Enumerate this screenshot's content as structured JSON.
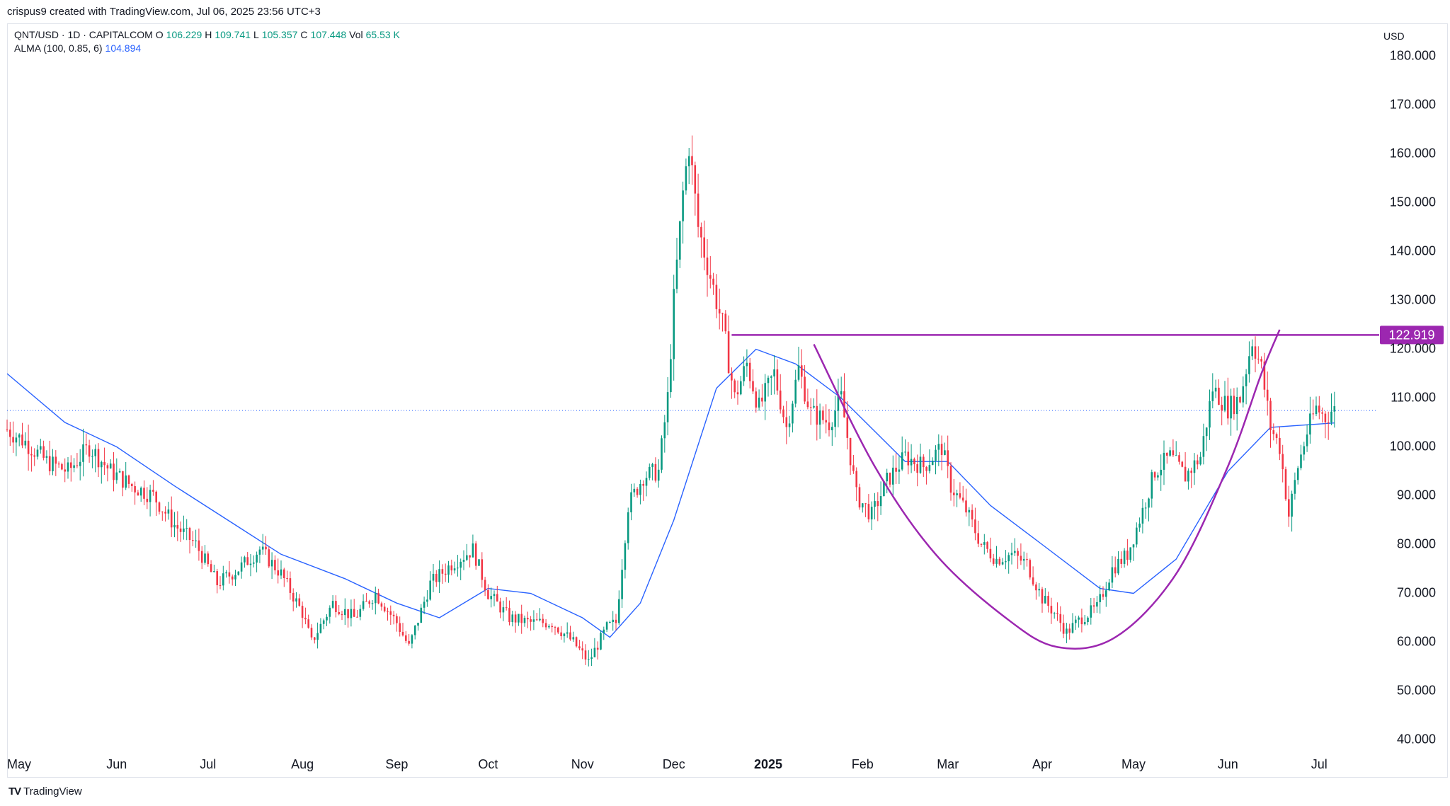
{
  "header": {
    "credit": "crispus9 created with TradingView.com, Jul 06, 2025 23:56 UTC+3"
  },
  "legend": {
    "symbol": "QNT/USD · 1D · CAPITALCOM",
    "o_label": "O",
    "o_value": "106.229",
    "h_label": "H",
    "h_value": "109.741",
    "l_label": "L",
    "l_value": "105.357",
    "c_label": "C",
    "c_value": "107.448",
    "vol_label": "Vol",
    "vol_value": "65.53 K",
    "alma_label": "ALMA (100, 0.85, 6)",
    "alma_value": "104.894"
  },
  "axis": {
    "currency": "USD"
  },
  "footer": {
    "brand": "TradingView"
  },
  "colors": {
    "up": "#089981",
    "down": "#f23645",
    "alma": "#2962ff",
    "pattern": "#9c27b0",
    "price_line": "#2962ff"
  },
  "chart_data": {
    "type": "candlestick",
    "title": "QNT/USD · 1D · CAPITALCOM",
    "ylim": [
      35,
      185
    ],
    "y_ticks": [
      "40.000",
      "50.000",
      "60.000",
      "70.000",
      "80.000",
      "90.000",
      "100.000",
      "110.000",
      "120.000",
      "130.000",
      "140.000",
      "150.000",
      "160.000",
      "170.000",
      "180.000"
    ],
    "x_ticks": [
      {
        "label": "May",
        "date": "2024-05-01"
      },
      {
        "label": "Jun",
        "date": "2024-06-01"
      },
      {
        "label": "Jul",
        "date": "2024-07-01"
      },
      {
        "label": "Aug",
        "date": "2024-08-01"
      },
      {
        "label": "Sep",
        "date": "2024-09-01"
      },
      {
        "label": "Oct",
        "date": "2024-10-01"
      },
      {
        "label": "Nov",
        "date": "2024-11-01"
      },
      {
        "label": "Dec",
        "date": "2024-12-01"
      },
      {
        "label": "2025",
        "date": "2025-01-01",
        "bold": true
      },
      {
        "label": "Feb",
        "date": "2025-02-01"
      },
      {
        "label": "Mar",
        "date": "2025-03-01"
      },
      {
        "label": "Apr",
        "date": "2025-04-01"
      },
      {
        "label": "May",
        "date": "2025-05-01"
      },
      {
        "label": "Jun",
        "date": "2025-06-01"
      },
      {
        "label": "Jul",
        "date": "2025-07-01"
      }
    ],
    "close_points": [
      [
        "2024-04-26",
        104
      ],
      [
        "2024-05-03",
        101
      ],
      [
        "2024-05-10",
        97
      ],
      [
        "2024-05-17",
        95
      ],
      [
        "2024-05-24",
        100
      ],
      [
        "2024-05-31",
        95
      ],
      [
        "2024-06-07",
        92
      ],
      [
        "2024-06-14",
        90
      ],
      [
        "2024-06-21",
        84
      ],
      [
        "2024-06-28",
        80
      ],
      [
        "2024-07-05",
        72
      ],
      [
        "2024-07-12",
        75
      ],
      [
        "2024-07-19",
        79
      ],
      [
        "2024-07-26",
        74
      ],
      [
        "2024-08-02",
        66
      ],
      [
        "2024-08-05",
        60
      ],
      [
        "2024-08-12",
        68
      ],
      [
        "2024-08-19",
        65
      ],
      [
        "2024-08-26",
        70
      ],
      [
        "2024-09-02",
        64
      ],
      [
        "2024-09-06",
        59
      ],
      [
        "2024-09-13",
        72
      ],
      [
        "2024-09-20",
        76
      ],
      [
        "2024-09-27",
        79
      ],
      [
        "2024-10-02",
        70
      ],
      [
        "2024-10-09",
        65
      ],
      [
        "2024-10-16",
        64
      ],
      [
        "2024-10-23",
        64
      ],
      [
        "2024-10-30",
        60
      ],
      [
        "2024-11-04",
        56
      ],
      [
        "2024-11-10",
        63
      ],
      [
        "2024-11-13",
        64
      ],
      [
        "2024-11-17",
        88
      ],
      [
        "2024-11-22",
        94
      ],
      [
        "2024-11-27",
        95
      ],
      [
        "2024-11-30",
        110
      ],
      [
        "2024-12-02",
        130
      ],
      [
        "2024-12-05",
        152
      ],
      [
        "2024-12-07",
        162
      ],
      [
        "2024-12-10",
        145
      ],
      [
        "2024-12-14",
        135
      ],
      [
        "2024-12-18",
        125
      ],
      [
        "2024-12-22",
        110
      ],
      [
        "2024-12-26",
        117
      ],
      [
        "2024-12-30",
        108
      ],
      [
        "2025-01-04",
        115
      ],
      [
        "2025-01-08",
        104
      ],
      [
        "2025-01-12",
        116
      ],
      [
        "2025-01-16",
        107
      ],
      [
        "2025-01-22",
        105
      ],
      [
        "2025-01-26",
        110
      ],
      [
        "2025-01-31",
        90
      ],
      [
        "2025-02-05",
        86
      ],
      [
        "2025-02-10",
        93
      ],
      [
        "2025-02-16",
        98
      ],
      [
        "2025-02-22",
        96
      ],
      [
        "2025-02-28",
        100
      ],
      [
        "2025-03-03",
        92
      ],
      [
        "2025-03-08",
        87
      ],
      [
        "2025-03-13",
        80
      ],
      [
        "2025-03-18",
        77
      ],
      [
        "2025-03-23",
        78
      ],
      [
        "2025-03-28",
        76
      ],
      [
        "2025-04-02",
        69
      ],
      [
        "2025-04-06",
        66
      ],
      [
        "2025-04-10",
        62
      ],
      [
        "2025-04-15",
        65
      ],
      [
        "2025-04-20",
        67
      ],
      [
        "2025-04-25",
        75
      ],
      [
        "2025-04-30",
        78
      ],
      [
        "2025-05-05",
        87
      ],
      [
        "2025-05-09",
        95
      ],
      [
        "2025-05-14",
        98
      ],
      [
        "2025-05-19",
        94
      ],
      [
        "2025-05-24",
        98
      ],
      [
        "2025-05-28",
        112
      ],
      [
        "2025-06-02",
        108
      ],
      [
        "2025-06-06",
        110
      ],
      [
        "2025-06-10",
        122
      ],
      [
        "2025-06-13",
        116
      ],
      [
        "2025-06-16",
        104
      ],
      [
        "2025-06-19",
        100
      ],
      [
        "2025-06-22",
        86
      ],
      [
        "2025-06-25",
        96
      ],
      [
        "2025-06-28",
        103
      ],
      [
        "2025-07-01",
        108
      ],
      [
        "2025-07-04",
        106
      ],
      [
        "2025-07-06",
        107.448
      ]
    ],
    "alma_points": [
      [
        "2024-04-26",
        115
      ],
      [
        "2024-05-15",
        105
      ],
      [
        "2024-06-01",
        100
      ],
      [
        "2024-06-20",
        92
      ],
      [
        "2024-07-10",
        84
      ],
      [
        "2024-07-25",
        78
      ],
      [
        "2024-08-15",
        73
      ],
      [
        "2024-09-01",
        68
      ],
      [
        "2024-09-15",
        65
      ],
      [
        "2024-10-01",
        71
      ],
      [
        "2024-10-15",
        70
      ],
      [
        "2024-11-01",
        65
      ],
      [
        "2024-11-10",
        61
      ],
      [
        "2024-11-20",
        68
      ],
      [
        "2024-12-01",
        85
      ],
      [
        "2024-12-15",
        112
      ],
      [
        "2024-12-28",
        120
      ],
      [
        "2025-01-10",
        117
      ],
      [
        "2025-01-25",
        110
      ],
      [
        "2025-02-15",
        97
      ],
      [
        "2025-03-01",
        97
      ],
      [
        "2025-03-15",
        88
      ],
      [
        "2025-04-01",
        80
      ],
      [
        "2025-04-20",
        71
      ],
      [
        "2025-05-01",
        70
      ],
      [
        "2025-05-15",
        77
      ],
      [
        "2025-06-01",
        95
      ],
      [
        "2025-06-15",
        104
      ],
      [
        "2025-07-06",
        104.894
      ]
    ],
    "alma_label": "ALMA (100, 0.85, 6)",
    "resistance": {
      "value": 122.919,
      "label": "122.919",
      "from": "2024-12-20",
      "to": "2025-07-20"
    },
    "cup_curve": [
      [
        "2025-01-16",
        121
      ],
      [
        "2025-02-05",
        96
      ],
      [
        "2025-02-25",
        78
      ],
      [
        "2025-03-20",
        65
      ],
      [
        "2025-04-06",
        59
      ],
      [
        "2025-04-25",
        61
      ],
      [
        "2025-05-15",
        74
      ],
      [
        "2025-06-01",
        96
      ],
      [
        "2025-06-12",
        115
      ],
      [
        "2025-06-18",
        124
      ]
    ],
    "current_price": 107.448,
    "volume": "65.53 K"
  }
}
